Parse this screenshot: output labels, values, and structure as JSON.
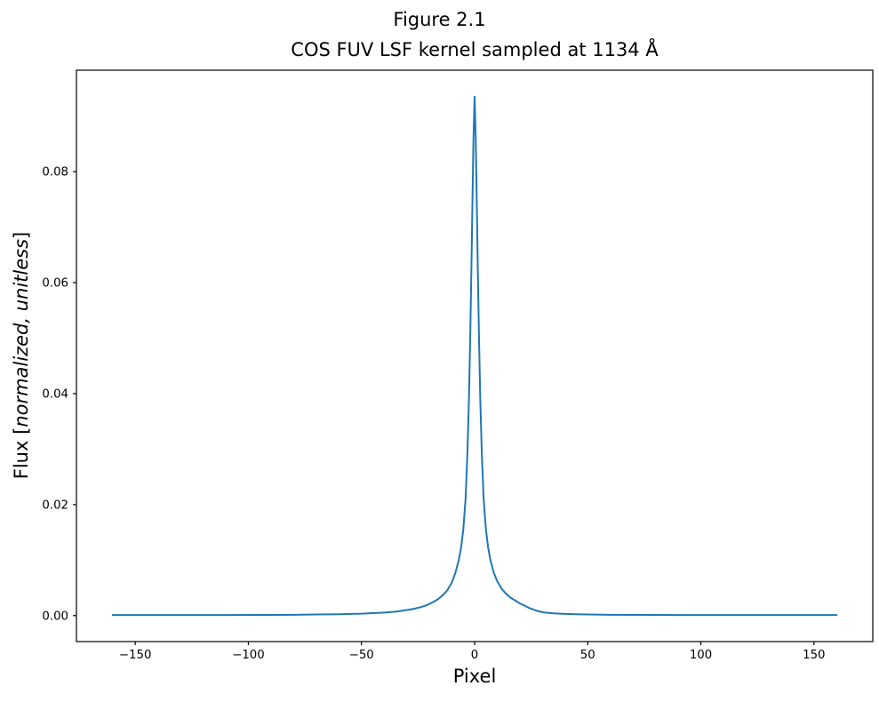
{
  "figure": {
    "suptitle": "Figure 2.1",
    "title": "COS FUV LSF kernel sampled at 1134 Å"
  },
  "axes": {
    "xlabel": "Pixel",
    "ylabel_prefix": "Flux [",
    "ylabel_italic": "normalized, unitless",
    "ylabel_suffix": "]"
  },
  "chart_data": {
    "type": "line",
    "title": "Figure 2.1",
    "subtitle": "COS FUV LSF kernel sampled at 1134 Å",
    "xlabel": "Pixel",
    "ylabel": "Flux [normalized, unitless]",
    "xlim": [
      -176,
      176
    ],
    "ylim": [
      -0.00468,
      0.09828
    ],
    "xticks": {
      "values": [
        -150,
        -100,
        -50,
        0,
        50,
        100,
        150
      ],
      "labels": [
        "−150",
        "−100",
        "−50",
        "0",
        "50",
        "100",
        "150"
      ]
    },
    "yticks": {
      "values": [
        0.0,
        0.02,
        0.04,
        0.06,
        0.08
      ],
      "labels": [
        "0.00",
        "0.02",
        "0.04",
        "0.06",
        "0.08"
      ]
    },
    "grid": false,
    "legend": null,
    "line_color": "#1f77b4",
    "axis_color": "#000000",
    "background_color": "#ffffff",
    "peak": {
      "x": 0,
      "y": 0.0935
    },
    "x_range_of_data": [
      -160,
      160
    ],
    "series": [
      {
        "name": "COS FUV LSF kernel at 1134 Å",
        "points": [
          [
            -160,
            0.0001
          ],
          [
            -150,
            0.0001
          ],
          [
            -140,
            0.0001
          ],
          [
            -130,
            0.0001
          ],
          [
            -120,
            0.0001
          ],
          [
            -110,
            0.00011
          ],
          [
            -100,
            0.00012
          ],
          [
            -90,
            0.00013
          ],
          [
            -80,
            0.00015
          ],
          [
            -70,
            0.0002
          ],
          [
            -60,
            0.00025
          ],
          [
            -55,
            0.0003
          ],
          [
            -50,
            0.00035
          ],
          [
            -45,
            0.00045
          ],
          [
            -40,
            0.00055
          ],
          [
            -35,
            0.0007
          ],
          [
            -30,
            0.001
          ],
          [
            -27,
            0.0012
          ],
          [
            -24,
            0.0015
          ],
          [
            -21,
            0.0019
          ],
          [
            -18,
            0.0025
          ],
          [
            -16,
            0.003
          ],
          [
            -14,
            0.0037
          ],
          [
            -12,
            0.0046
          ],
          [
            -10,
            0.006
          ],
          [
            -8.5,
            0.0077
          ],
          [
            -7,
            0.01
          ],
          [
            -6,
            0.0122
          ],
          [
            -5,
            0.0155
          ],
          [
            -4,
            0.021
          ],
          [
            -3.2,
            0.029
          ],
          [
            -2.5,
            0.039
          ],
          [
            -1.9,
            0.051
          ],
          [
            -1.4,
            0.063
          ],
          [
            -0.9,
            0.076
          ],
          [
            -0.5,
            0.086
          ],
          [
            0,
            0.0935
          ],
          [
            0.5,
            0.086
          ],
          [
            0.9,
            0.076
          ],
          [
            1.4,
            0.063
          ],
          [
            1.9,
            0.051
          ],
          [
            2.5,
            0.039
          ],
          [
            3.2,
            0.029
          ],
          [
            4,
            0.021
          ],
          [
            5,
            0.0155
          ],
          [
            6,
            0.0122
          ],
          [
            7,
            0.01
          ],
          [
            8.5,
            0.0077
          ],
          [
            10,
            0.0062
          ],
          [
            12,
            0.0048
          ],
          [
            14,
            0.0039
          ],
          [
            16,
            0.0032
          ],
          [
            18,
            0.0027
          ],
          [
            20,
            0.0022
          ],
          [
            22,
            0.0018
          ],
          [
            24,
            0.0014
          ],
          [
            26,
            0.0011
          ],
          [
            28,
            0.0008
          ],
          [
            31,
            0.00055
          ],
          [
            35,
            0.0004
          ],
          [
            40,
            0.0003
          ],
          [
            45,
            0.00025
          ],
          [
            50,
            0.0002
          ],
          [
            60,
            0.00015
          ],
          [
            80,
            0.00012
          ],
          [
            100,
            0.0001
          ],
          [
            120,
            0.0001
          ],
          [
            140,
            0.0001
          ],
          [
            150,
            0.0001
          ],
          [
            160,
            0.0001
          ]
        ]
      }
    ]
  }
}
